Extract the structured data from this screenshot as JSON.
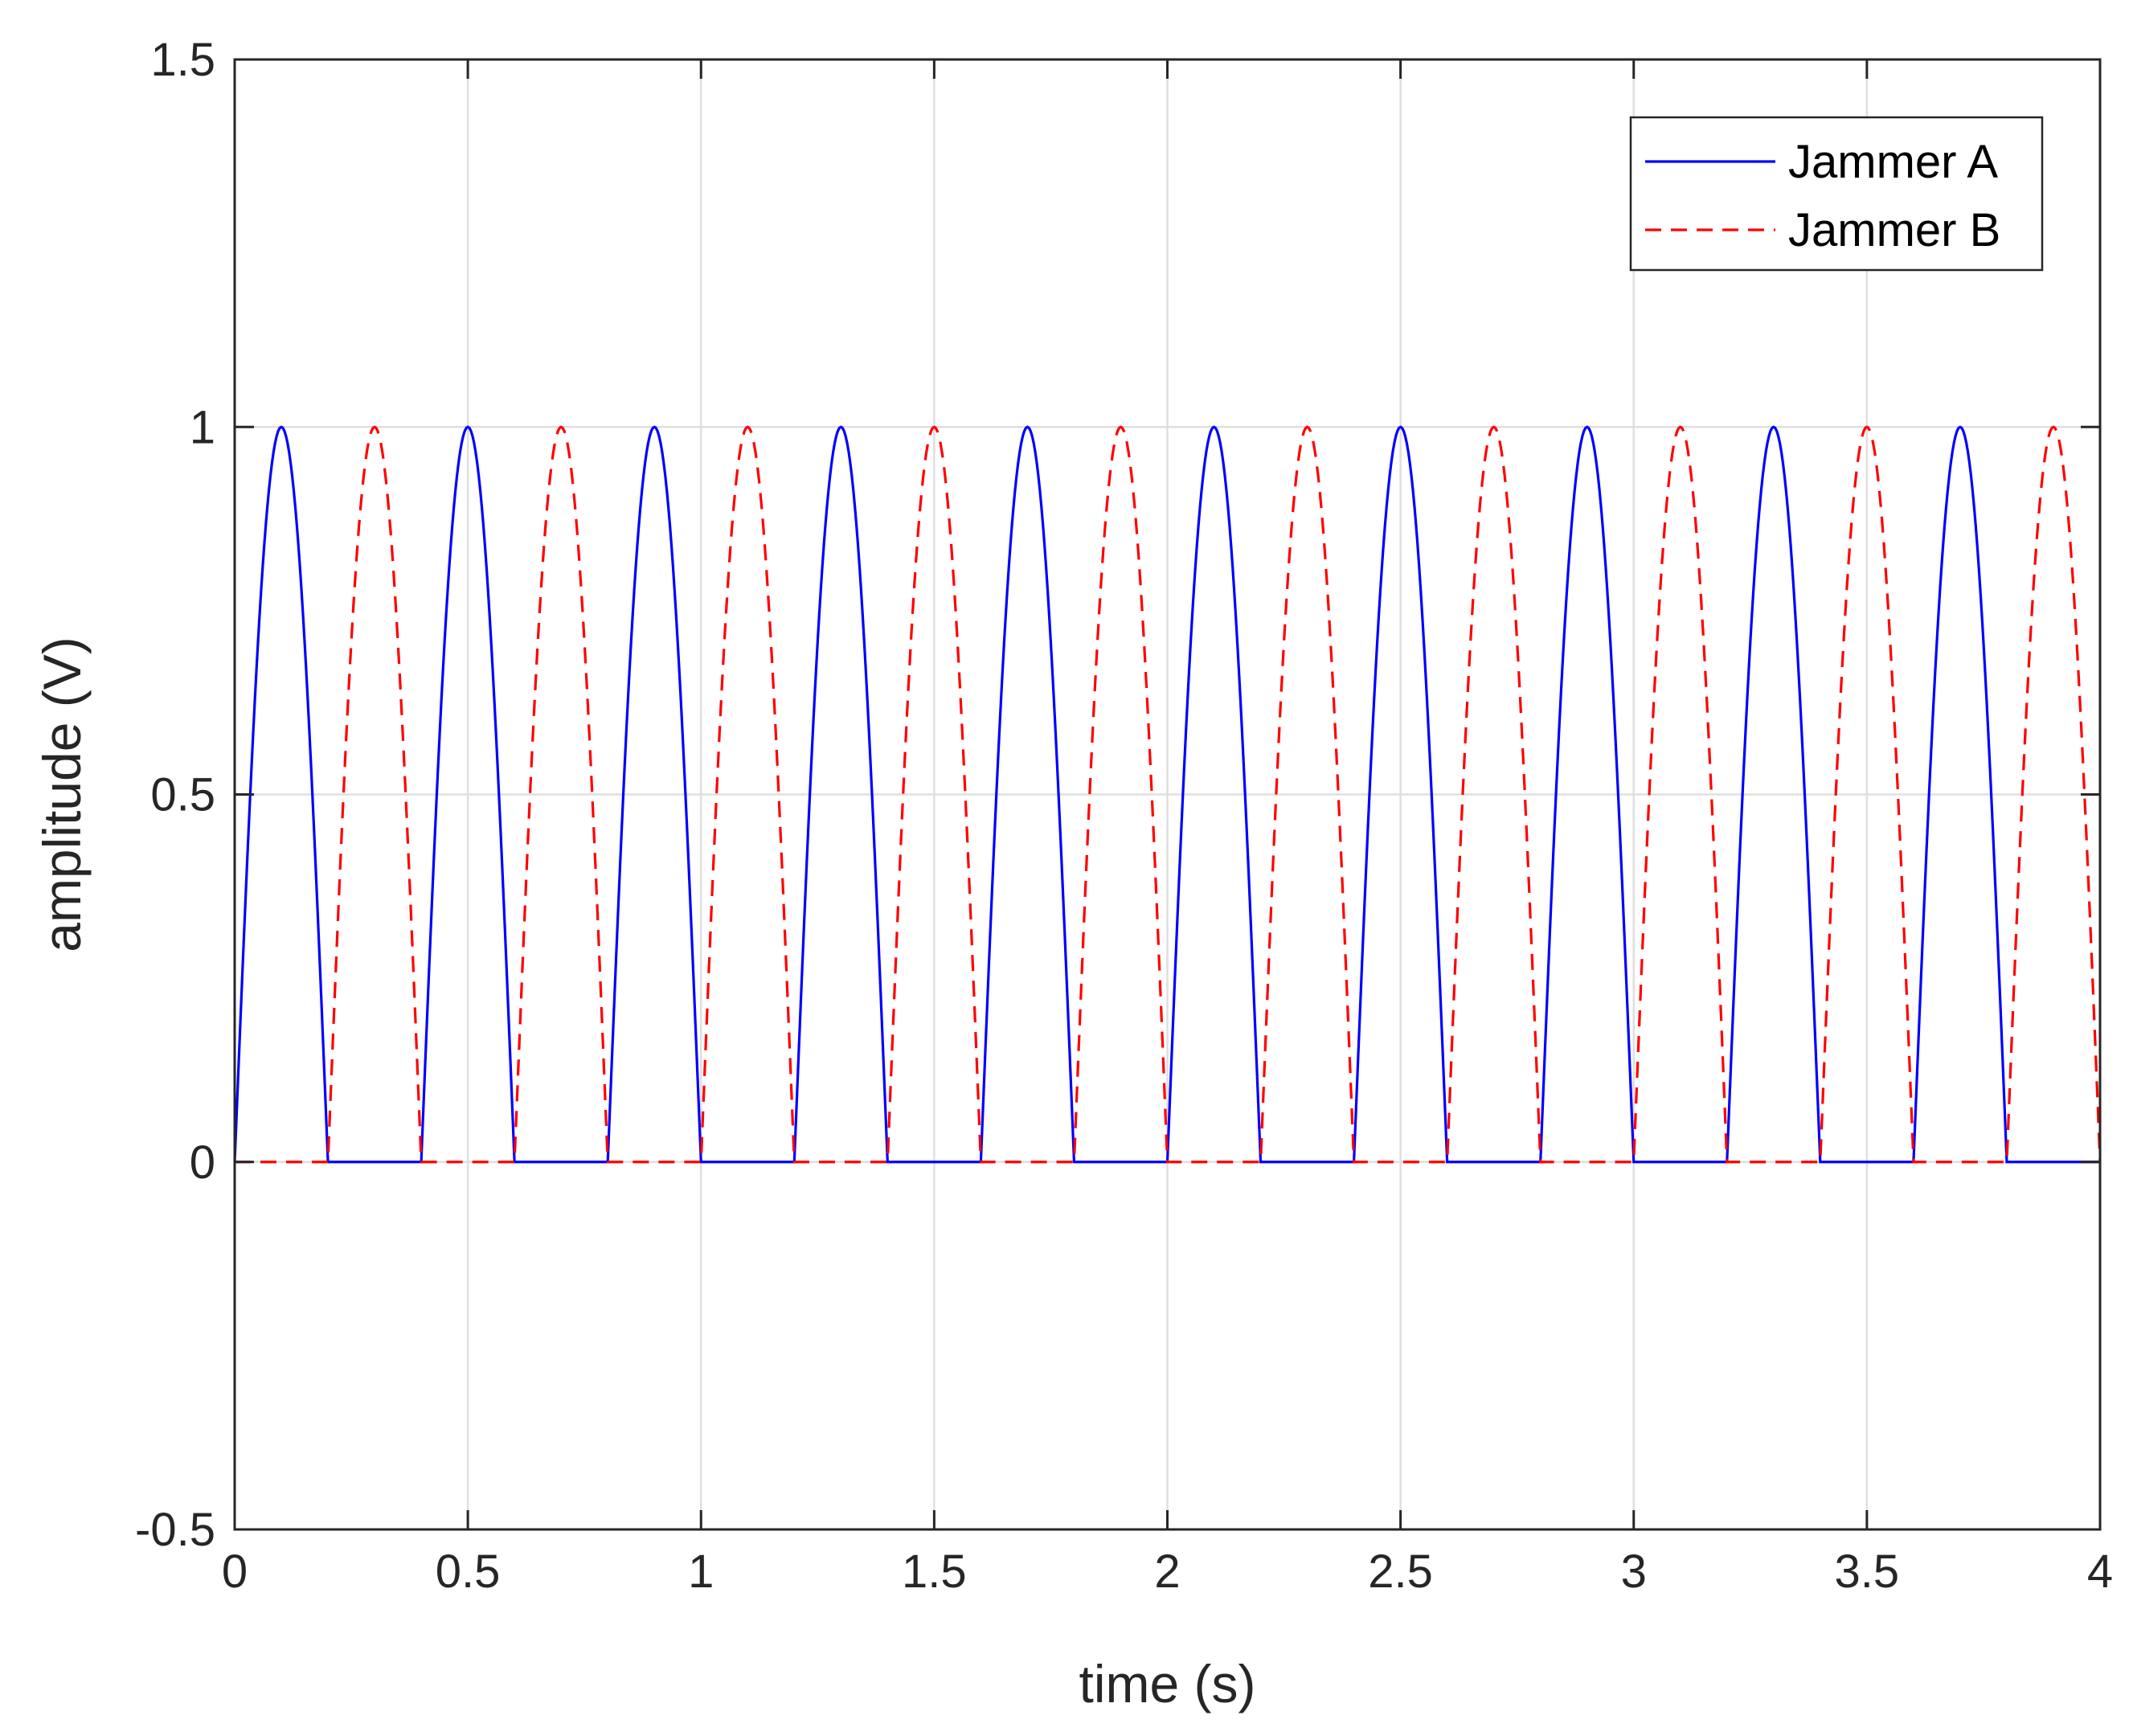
{
  "chart_data": {
    "type": "line",
    "title": "",
    "xlabel": "time (s)",
    "ylabel": "amplitude (V)",
    "xlim": [
      0,
      4
    ],
    "ylim": [
      -0.5,
      1.5
    ],
    "grid": true,
    "x_ticks": [
      {
        "value": 0,
        "label": "0"
      },
      {
        "value": 0.5,
        "label": "0.5"
      },
      {
        "value": 1,
        "label": "1"
      },
      {
        "value": 1.5,
        "label": "1.5"
      },
      {
        "value": 2,
        "label": "2"
      },
      {
        "value": 2.5,
        "label": "2.5"
      },
      {
        "value": 3,
        "label": "3"
      },
      {
        "value": 3.5,
        "label": "3.5"
      },
      {
        "value": 4,
        "label": "4"
      }
    ],
    "y_ticks": [
      {
        "value": -0.5,
        "label": "-0.5"
      },
      {
        "value": 0,
        "label": "0"
      },
      {
        "value": 0.5,
        "label": "0.5"
      },
      {
        "value": 1,
        "label": "1"
      },
      {
        "value": 1.5,
        "label": "1.5"
      }
    ],
    "legend_location": "top-right",
    "series": [
      {
        "name": "Jammer A",
        "color": "#0000ff",
        "style": "solid",
        "waveform": "half-wave sine pulses",
        "amplitude": 1,
        "period": 0.4,
        "pulse_width": 0.2,
        "start": 0.0,
        "peaks_at": [
          0.1,
          0.5,
          0.9,
          1.3,
          1.7,
          2.1,
          2.5,
          2.9,
          3.3,
          3.7
        ]
      },
      {
        "name": "Jammer B",
        "color": "#ff0000",
        "style": "dashed",
        "waveform": "half-wave sine pulses",
        "amplitude": 1,
        "period": 0.4,
        "pulse_width": 0.2,
        "start": 0.2,
        "peaks_at": [
          0.3,
          0.7,
          1.1,
          1.5,
          1.9,
          2.3,
          2.7,
          3.1,
          3.5,
          3.9
        ]
      }
    ]
  }
}
